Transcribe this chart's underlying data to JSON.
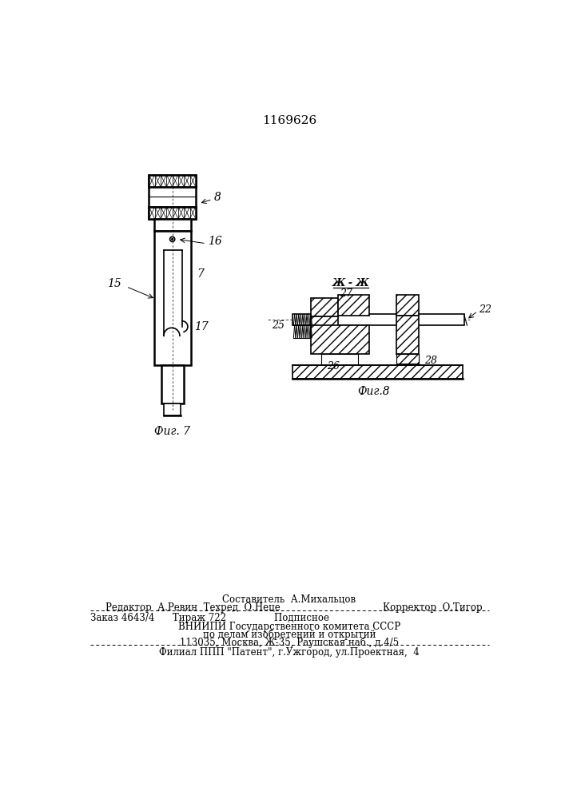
{
  "patent_number": "1169626",
  "bg_color": "#ffffff",
  "line_color": "#000000",
  "fig7_label": "Фиг. 7",
  "fig8_label": "Фиг.8",
  "footer": {
    "line1": "Составитель  А.Михальцов",
    "line2_left": "Редактор  А.Ревин  Техред  О.Неце",
    "line2_right": "Корректор  О.Тигор",
    "line3": "Заказ 4643/4      Тираж 722                Подписное",
    "line4": "ВНИИПИ Государственного комитета СССР",
    "line5": "по делам изобретений и открытий",
    "line6": "113035, Москва, Ж-35, Раушская наб., д.4/5",
    "line7": "Филиал ППП \"Патент\", г.Ужгород, ул.Проектная,  4"
  }
}
